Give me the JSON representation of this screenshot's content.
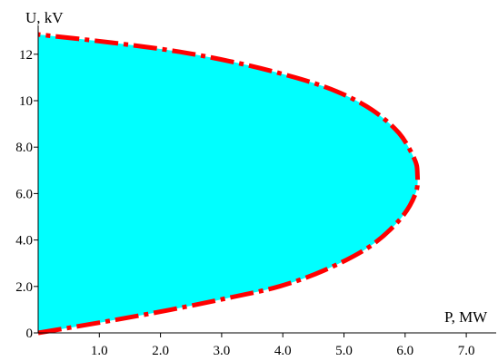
{
  "chart_data": {
    "type": "area",
    "xlabel": "P, MW",
    "ylabel": "U, kV",
    "xlim": [
      0,
      7.2
    ],
    "ylim": [
      0,
      13.2
    ],
    "x_ticks": [
      {
        "value": 1,
        "label": "1.0"
      },
      {
        "value": 2,
        "label": "2.0"
      },
      {
        "value": 3,
        "label": "3.0"
      },
      {
        "value": 4,
        "label": "4.0"
      },
      {
        "value": 5,
        "label": "5.0"
      },
      {
        "value": 6,
        "label": "6.0"
      },
      {
        "value": 7,
        "label": "7.0"
      }
    ],
    "y_ticks": [
      {
        "value": 0,
        "label": "0"
      },
      {
        "value": 2,
        "label": "2.0"
      },
      {
        "value": 4,
        "label": "4.0"
      },
      {
        "value": 6,
        "label": "6.0"
      },
      {
        "value": 8,
        "label": "8.0"
      },
      {
        "value": 10,
        "label": "10"
      },
      {
        "value": 12,
        "label": "12"
      }
    ],
    "grid": false,
    "legend": "none",
    "series": [
      {
        "values": [
          {
            "x": 0.0,
            "y": 0.0
          },
          {
            "x": 1.13,
            "y": 0.5
          },
          {
            "x": 2.17,
            "y": 1.0
          },
          {
            "x": 3.1,
            "y": 1.5
          },
          {
            "x": 3.94,
            "y": 2.0
          },
          {
            "x": 4.68,
            "y": 2.7
          },
          {
            "x": 5.41,
            "y": 3.7
          },
          {
            "x": 5.92,
            "y": 4.9
          },
          {
            "x": 6.17,
            "y": 6.0
          },
          {
            "x": 6.2,
            "y": 6.85
          },
          {
            "x": 6.15,
            "y": 7.5
          },
          {
            "x": 5.9,
            "y": 8.6
          },
          {
            "x": 5.46,
            "y": 9.6
          },
          {
            "x": 4.88,
            "y": 10.4
          },
          {
            "x": 4.2,
            "y": 11.0
          },
          {
            "x": 3.3,
            "y": 11.6
          },
          {
            "x": 2.32,
            "y": 12.1
          },
          {
            "x": 1.2,
            "y": 12.5
          },
          {
            "x": 0.0,
            "y": 12.85
          }
        ]
      }
    ],
    "colors": {
      "fill": "#00ffff",
      "boundary": "#ff0000",
      "axis": "#000000",
      "background": "#ffffff"
    }
  }
}
